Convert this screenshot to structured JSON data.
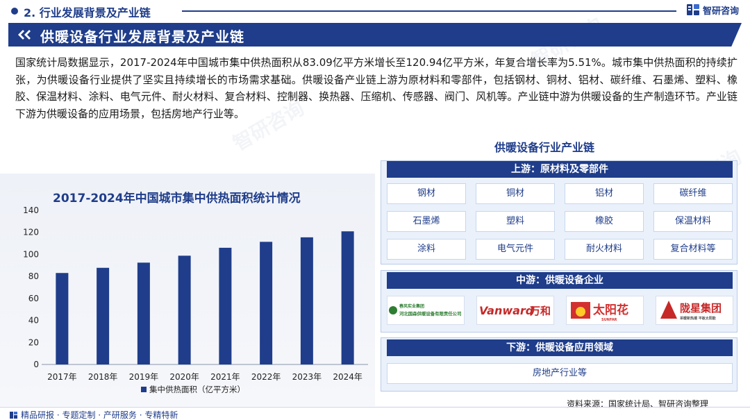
{
  "header": {
    "section_title": "2. 行业发展背景及产业链",
    "logo_text": "智研咨询"
  },
  "banner": {
    "title": "供暖设备行业发展背景及产业链"
  },
  "intro_text": "国家统计局数据显示，2017-2024年中国城市集中供热面积从83.09亿平方米增长至120.94亿平方米，年复合增长率为5.51%。城市集中供热面积的持续扩张，为供暖设备行业提供了坚实且持续增长的市场需求基础。供暖设备产业链上游为原材料和零部件，包括钢材、铜材、铝材、碳纤维、石墨烯、塑料、橡胶、保温材料、涂料、电气元件、耐火材料、复合材料、控制器、换热器、压缩机、传感器、阀门、风机等。产业链中游为供暖设备的生产制造环节。产业链下游为供暖设备的应用场景，包括房地产行业等。",
  "chart_data": {
    "type": "bar",
    "title": "2017-2024年中国城市集中供热面积统计情况",
    "categories": [
      "2017年",
      "2018年",
      "2019年",
      "2020年",
      "2021年",
      "2022年",
      "2023年",
      "2024年"
    ],
    "series": [
      {
        "name": "集中供热面积（亿平方米）",
        "values": [
          83.09,
          87.8,
          92.5,
          98.8,
          106.0,
          111.4,
          115.5,
          120.94
        ]
      }
    ],
    "ylim": [
      0,
      140
    ],
    "yticks": [
      0,
      20,
      40,
      60,
      80,
      100,
      120,
      140
    ],
    "color": "#1f3d8a",
    "legend_position": "bottom",
    "grid": false
  },
  "industry_chain": {
    "title": "供暖设备行业产业链",
    "upstream": {
      "label": "上游：原材料及零部件",
      "items": [
        "钢材",
        "铜材",
        "铝材",
        "碳纤维",
        "石墨烯",
        "塑料",
        "橡胶",
        "保温材料",
        "涂料",
        "电气元件",
        "耐火材料",
        "复合材料等"
      ]
    },
    "midstream": {
      "label": "中游：供暖设备企业",
      "companies": [
        {
          "name": "河北国森供暖设备有限责任公司",
          "logo_line1": "春风实业集团",
          "logo_line2": "河北国森供暖设备有限责任公司"
        },
        {
          "name": "Vanward万和",
          "logo_en": "Vanward",
          "logo_cn": "万和"
        },
        {
          "name": "太阳花",
          "logo_cn": "太阳花",
          "logo_en": "SUNFAR"
        },
        {
          "name": "陇星集团",
          "logo_cn": "陇星集团",
          "logo_sub": "采暖新热潮 平板太阳能"
        }
      ]
    },
    "downstream": {
      "label": "下游：供暖设备应用领域",
      "items": [
        "房地产行业等"
      ]
    }
  },
  "source_text": "资料来源：国家统计局、智研咨询整理",
  "footer_text": "精品研报 · 专题定制 · 产研服务 · 专精特新",
  "watermark_text": "智研咨询",
  "colors": {
    "primary": "#1f3d8a",
    "panel_bg": "#eaf1fb"
  },
  "icons": {
    "logo": "zhiyan-logo-icon",
    "banner": "double-chevron-icon",
    "footer": "zhiyan-small-icon"
  }
}
